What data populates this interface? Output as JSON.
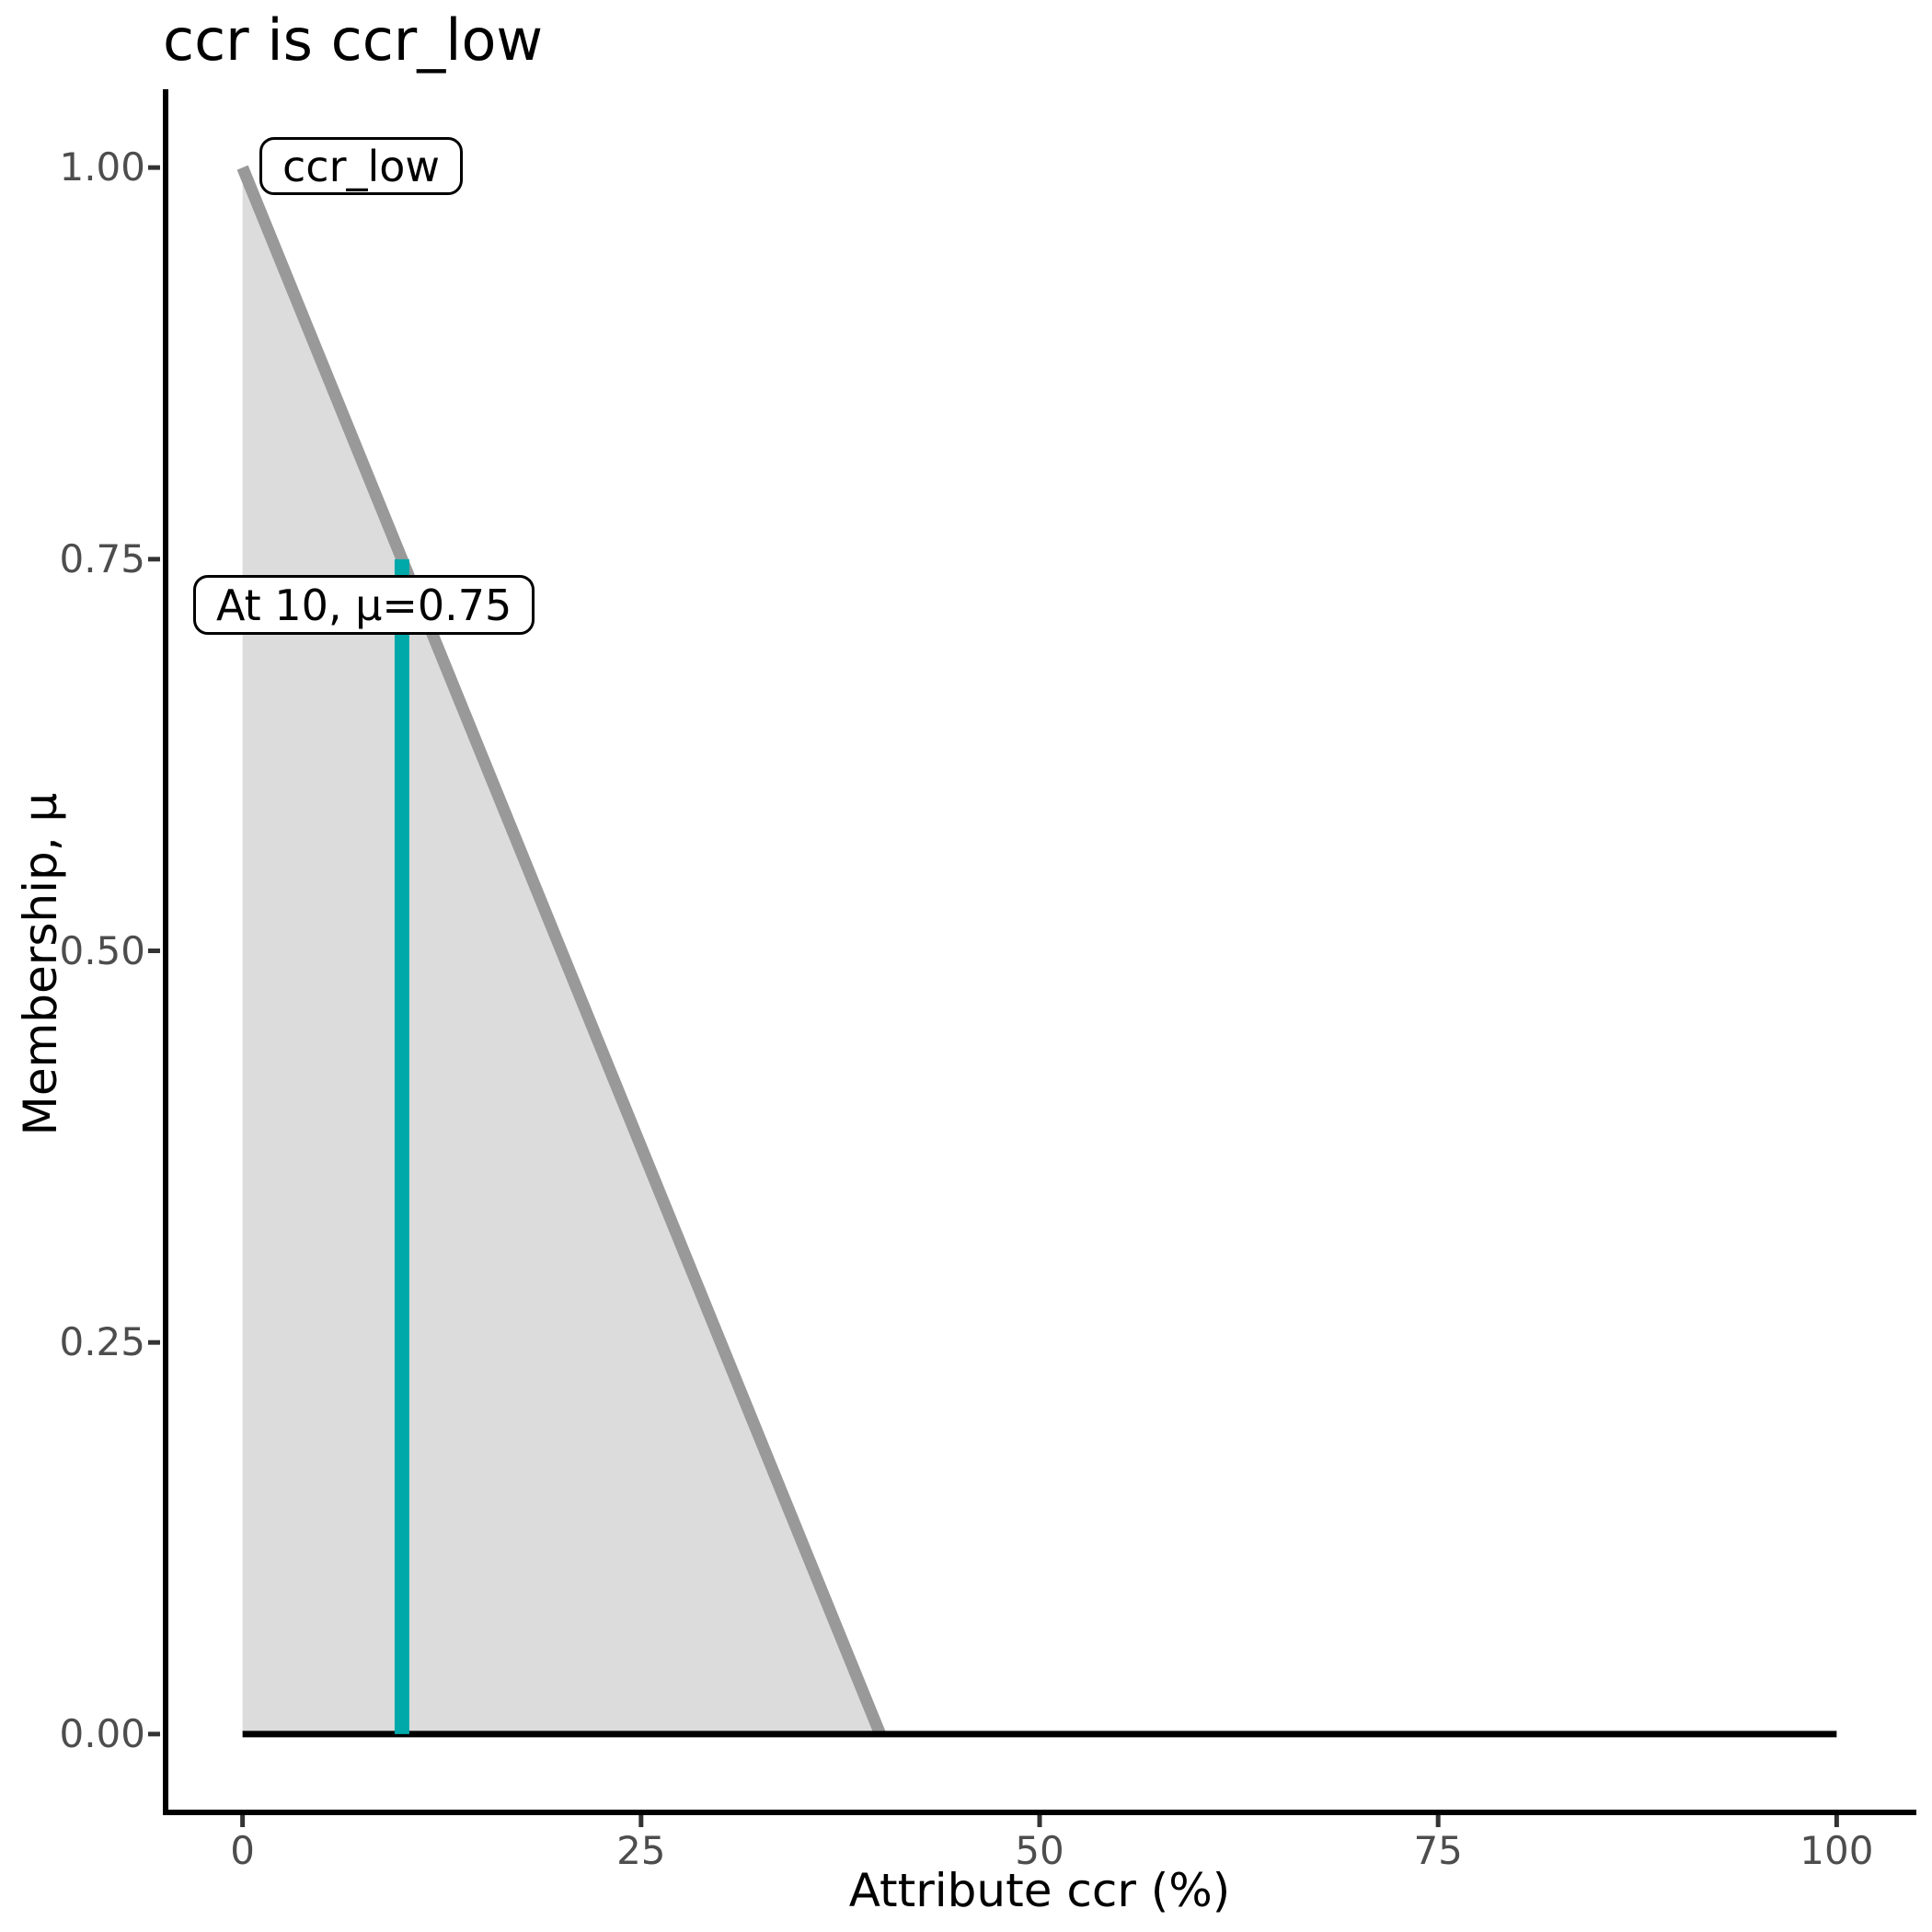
{
  "title": "ccr is ccr_low",
  "axes": {
    "x": {
      "label": "Attribute ccr (%)",
      "ticks": [
        "0",
        "25",
        "50",
        "75",
        "100"
      ]
    },
    "y": {
      "label": "Membership, μ",
      "ticks": [
        "0.00",
        "0.25",
        "0.50",
        "0.75",
        "1.00"
      ]
    }
  },
  "annotations": {
    "set_label": "ccr_low",
    "point_label": "At 10, μ=0.75"
  },
  "colors": {
    "membership_line": "#999999",
    "membership_fill": "#DCDCDC",
    "zero_baseline": "#000000",
    "crisp_input": "#00A9A9",
    "axis_line": "#000000",
    "tick_mark": "#333333",
    "tick_text": "#4d4d4d"
  },
  "chart_data": {
    "type": "area",
    "title": "ccr is ccr_low",
    "xlabel": "Attribute ccr (%)",
    "ylabel": "Membership, μ",
    "xlim": [
      0,
      100
    ],
    "ylim": [
      0,
      1
    ],
    "x_ticks": [
      0,
      25,
      50,
      75,
      100
    ],
    "y_ticks": [
      0,
      0.25,
      0.5,
      0.75,
      1
    ],
    "grid": false,
    "legend": "none",
    "series": [
      {
        "name": "ccr_low membership function",
        "type": "area",
        "color": "#999999",
        "fill": "#DCDCDC",
        "stroke_width": 13,
        "points": [
          [
            0,
            1
          ],
          [
            40,
            0
          ]
        ]
      },
      {
        "name": "zero membership baseline",
        "type": "line",
        "color": "#000000",
        "stroke_width": 7,
        "points": [
          [
            0,
            0
          ],
          [
            100,
            0
          ]
        ]
      },
      {
        "name": "crisp input at ccr=10",
        "type": "vline",
        "color": "#00A9A9",
        "stroke_width": 16,
        "x": 10,
        "y0": 0,
        "y1": 0.75
      }
    ],
    "annotations": [
      {
        "text": "ccr_low",
        "near": [
          1,
          1
        ]
      },
      {
        "text": "At 10, μ=0.75",
        "near": [
          10,
          0.72
        ]
      }
    ]
  }
}
